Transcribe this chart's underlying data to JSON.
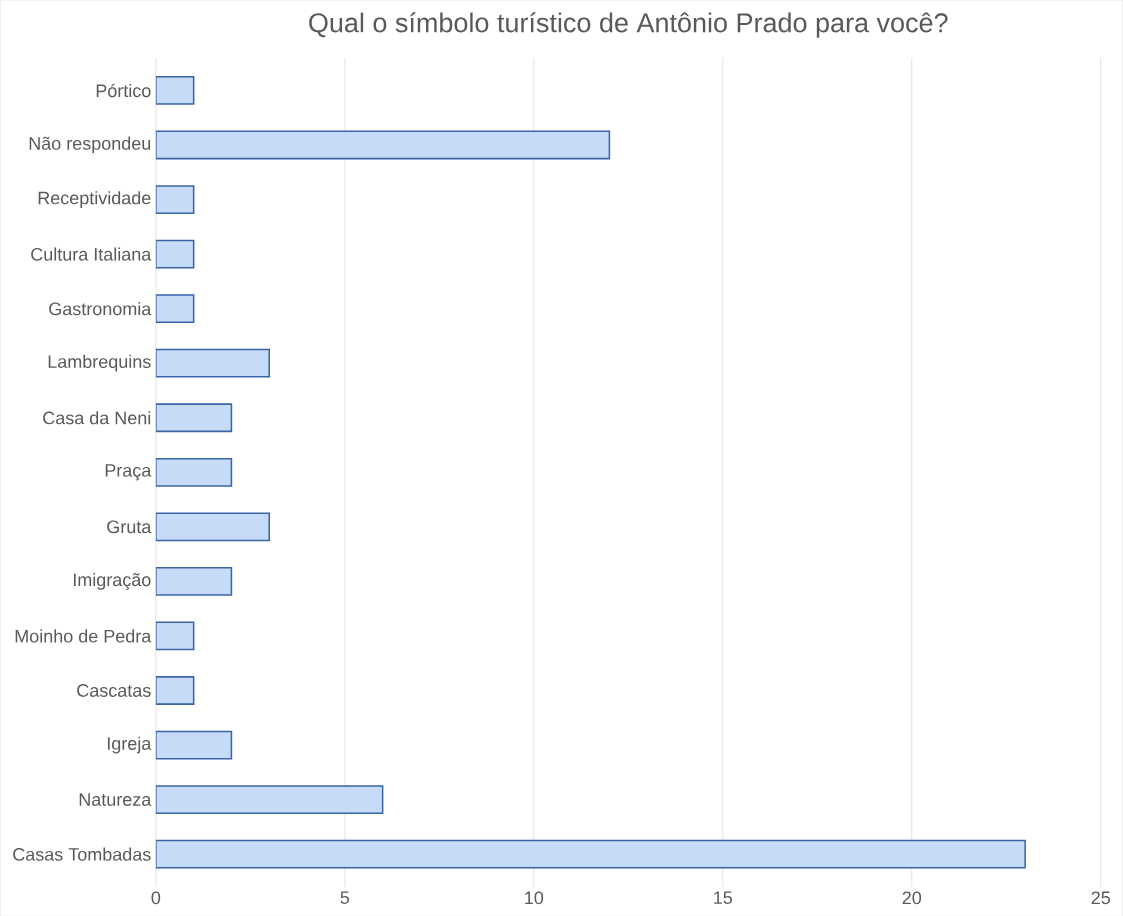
{
  "chart_data": {
    "type": "bar",
    "orientation": "horizontal",
    "title": "Qual o símbolo turístico de Antônio Prado para você?",
    "categories": [
      "Pórtico",
      "Não respondeu",
      "Receptividade",
      "Cultura Italiana",
      "Gastronomia",
      "Lambrequins",
      "Casa da Neni",
      "Praça",
      "Gruta",
      "Imigração",
      "Moinho de Pedra",
      "Cascatas",
      "Igreja",
      "Natureza",
      "Casas Tombadas"
    ],
    "values": [
      1,
      12,
      1,
      1,
      1,
      3,
      2,
      2,
      3,
      2,
      1,
      1,
      2,
      6,
      23
    ],
    "color": "#c6dbf7",
    "xlim": [
      0,
      25
    ],
    "xticks": [
      0,
      5,
      10,
      15,
      20,
      25
    ],
    "grid": "x"
  }
}
